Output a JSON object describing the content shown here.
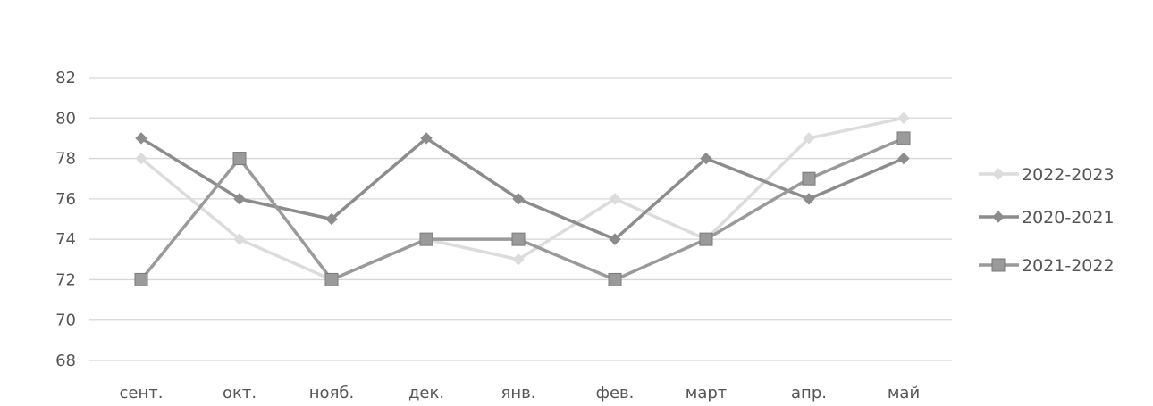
{
  "chart_data": {
    "type": "line",
    "categories": [
      "сент.",
      "окт.",
      "нояб.",
      "дек.",
      "янв.",
      "фев.",
      "март",
      "апр.",
      "май"
    ],
    "ylim": [
      68,
      82
    ],
    "yticks": [
      68,
      70,
      72,
      74,
      76,
      78,
      80,
      82
    ],
    "grid": true,
    "legend_position": "right",
    "series": [
      {
        "name": "2022-2023",
        "color": "#dcdcdc",
        "marker": "diamond",
        "values": [
          78,
          74,
          72,
          74,
          73,
          76,
          74,
          79,
          80
        ]
      },
      {
        "name": "2020-2021",
        "color": "#8c8c8c",
        "marker": "diamond",
        "values": [
          79,
          76,
          75,
          79,
          76,
          74,
          78,
          76,
          78
        ]
      },
      {
        "name": "2021-2022",
        "color": "#9a9a9a",
        "marker": "square",
        "values": [
          72,
          78,
          72,
          74,
          74,
          72,
          74,
          77,
          79
        ]
      }
    ]
  }
}
